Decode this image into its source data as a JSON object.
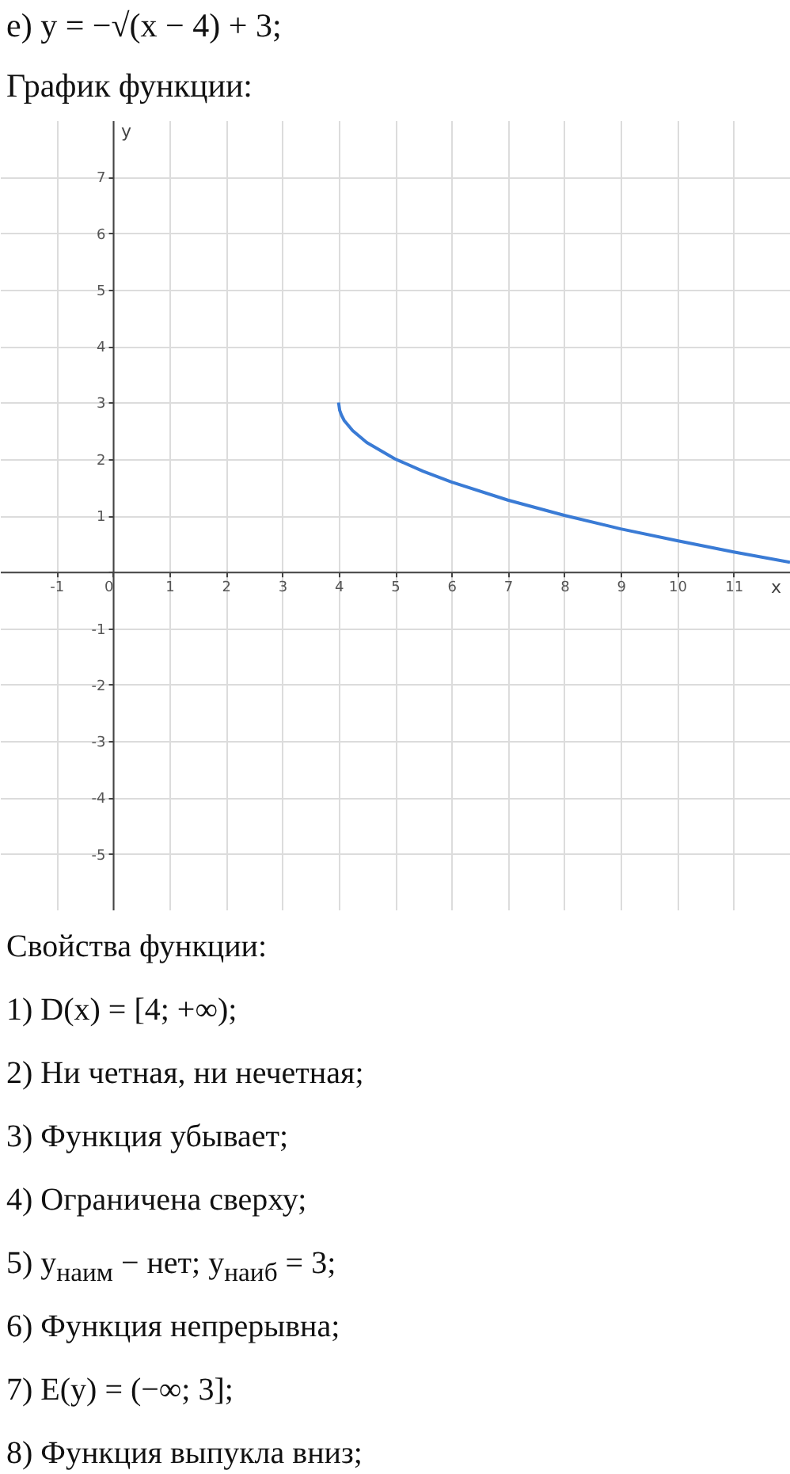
{
  "chart_data": {
    "type": "line",
    "title": "е) y = −√(x − 4) + 3;",
    "subtitle": "График функции:",
    "xlabel": "x",
    "ylabel": "y",
    "x": [
      4,
      4.02,
      4.05,
      4.1,
      4.25,
      4.5,
      5,
      5.5,
      6,
      7,
      8,
      9,
      10,
      11,
      12
    ],
    "series": [
      {
        "color": "#3a7bd5",
        "values": [
          3,
          2.86,
          2.78,
          2.68,
          2.5,
          2.29,
          2,
          1.78,
          1.59,
          1.27,
          1,
          0.76,
          0.55,
          0.35,
          0.17
        ]
      }
    ],
    "xlim": [
      -2,
      12
    ],
    "ylim": [
      -6,
      8
    ],
    "xticks": [
      -1,
      0,
      1,
      2,
      3,
      4,
      5,
      6,
      7,
      8,
      9,
      10,
      11
    ],
    "yticks": [
      -5,
      -4,
      -3,
      -2,
      -1,
      {
        "value": 0,
        "label": null
      },
      1,
      2,
      3,
      4,
      5,
      6,
      7
    ],
    "grid": true,
    "marker": "none",
    "line_style": "solid",
    "annotations": [
      "Свойства функции:",
      "1) D(x) = [4; +∞);",
      "2) Ни четная, ни нечетная;",
      "3) Функция убывает;",
      "4) Ограничена сверху;",
      "5) y$_{наим}$ − нет; y$_{наиб}$ = 3;",
      "6) Функция непрерывна;",
      "7) E(y) = (−∞; 3];",
      "8) Функция выпукла вниз;"
    ]
  }
}
